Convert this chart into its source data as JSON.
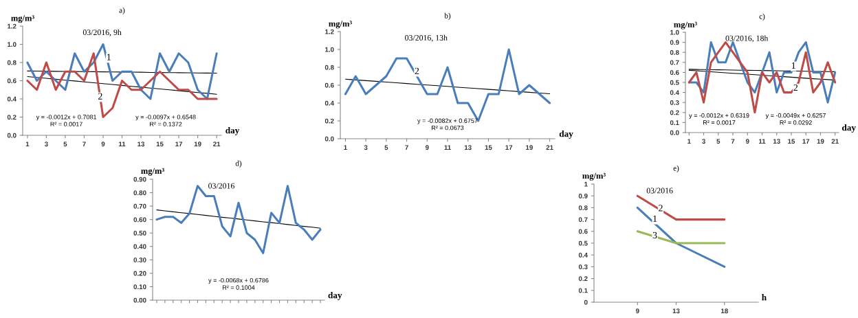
{
  "chart_data": [
    {
      "type": "line",
      "title": "a)",
      "subtitle": "03/2016, 9h",
      "ylabel": "mg/m³",
      "xlabel": "day",
      "x": [
        1,
        2,
        3,
        4,
        5,
        6,
        7,
        8,
        9,
        10,
        11,
        12,
        13,
        14,
        15,
        16,
        17,
        18,
        19,
        20,
        21
      ],
      "xlim": [
        0.5,
        21.5
      ],
      "xticks": [
        1,
        3,
        5,
        7,
        9,
        11,
        13,
        15,
        17,
        19,
        21
      ],
      "ylim": [
        0,
        1.2
      ],
      "yticks": [
        {
          "value": 0,
          "label": "0.0"
        },
        0.2,
        0.4,
        0.6,
        0.8,
        {
          "value": 1,
          "label": "1.0"
        },
        1.2
      ],
      "series": [
        {
          "color": "#4a7ebb",
          "values": [
            0.8,
            0.6,
            0.7,
            0.6,
            0.5,
            0.9,
            0.7,
            0.8,
            1.0,
            0.6,
            0.7,
            0.7,
            0.5,
            0.4,
            0.9,
            0.7,
            0.9,
            0.8,
            0.5,
            0.4,
            0.9
          ]
        },
        {
          "color": "#be4b48",
          "values": [
            0.6,
            0.5,
            0.8,
            0.5,
            0.7,
            0.7,
            0.6,
            0.9,
            0.2,
            0.3,
            0.6,
            0.5,
            0.5,
            0.6,
            0.7,
            0.6,
            0.5,
            0.5,
            0.4,
            0.4,
            0.4
          ]
        },
        {
          "type": "line",
          "color": "#000000",
          "values": [
            0.707,
            0.706,
            0.705,
            0.703,
            0.702,
            0.701,
            0.7,
            0.699,
            0.697,
            0.696,
            0.695,
            0.694,
            0.693,
            0.691,
            0.69,
            0.689,
            0.688,
            0.687,
            0.685,
            0.684,
            0.683
          ]
        },
        {
          "type": "line",
          "color": "#000000",
          "values": [
            0.645,
            0.636,
            0.626,
            0.616,
            0.606,
            0.597,
            0.587,
            0.577,
            0.568,
            0.558,
            0.548,
            0.538,
            0.529,
            0.519,
            0.509,
            0.5,
            0.49,
            0.48,
            0.47,
            0.461,
            0.451
          ]
        }
      ],
      "annotations": [
        {
          "text": "1",
          "x": 9.6,
          "y": 0.85
        },
        {
          "text": "2",
          "x": 8.7,
          "y": 0.42
        },
        "y = -0.0012x + 0.7081\nR² = 0.0017",
        "y = -0.0097x + 0.6548\nR² = 0.1372"
      ]
    },
    {
      "type": "line",
      "title": "b)",
      "subtitle": "03/2016, 13h",
      "ylabel": "mg/m³",
      "xlabel": "day",
      "x": [
        1,
        2,
        3,
        4,
        5,
        6,
        7,
        8,
        9,
        10,
        11,
        12,
        13,
        14,
        15,
        16,
        17,
        18,
        19,
        20,
        21
      ],
      "xlim": [
        0.5,
        21.5
      ],
      "xticks": [
        1,
        3,
        5,
        7,
        9,
        11,
        13,
        15,
        17,
        19,
        21
      ],
      "ylim": [
        0,
        1.2
      ],
      "yticks": [
        {
          "value": 0,
          "label": "0.0"
        },
        0.2,
        0.4,
        0.6,
        0.8,
        {
          "value": 1,
          "label": "1.0"
        },
        1.2
      ],
      "series": [
        {
          "color": "#4a7ebb",
          "values": [
            0.5,
            0.7,
            0.5,
            0.6,
            0.7,
            0.9,
            0.9,
            0.7,
            0.5,
            0.5,
            0.8,
            0.4,
            0.4,
            0.2,
            0.5,
            0.5,
            1.0,
            0.5,
            0.6,
            0.5,
            0.4
          ]
        },
        {
          "type": "line",
          "color": "#000000",
          "values": [
            0.667,
            0.659,
            0.651,
            0.643,
            0.635,
            0.627,
            0.618,
            0.61,
            0.602,
            0.594,
            0.586,
            0.577,
            0.569,
            0.561,
            0.553,
            0.545,
            0.536,
            0.528,
            0.52,
            0.512,
            0.504
          ]
        }
      ],
      "annotations": [
        {
          "text": "2",
          "x": 8.0,
          "y": 0.75
        },
        "y = -0.0082x + 0.6757\nR² = 0.0673"
      ]
    },
    {
      "type": "line",
      "title": "c)",
      "subtitle": "03/2016, 18h",
      "ylabel": "mg/m³",
      "xlabel": "day",
      "x": [
        1,
        2,
        3,
        4,
        5,
        6,
        7,
        8,
        9,
        10,
        11,
        12,
        13,
        14,
        15,
        16,
        17,
        18,
        19,
        20,
        21
      ],
      "xlim": [
        0.5,
        21.5
      ],
      "xticks": [
        1,
        3,
        5,
        7,
        9,
        11,
        13,
        15,
        17,
        19,
        21
      ],
      "ylim": [
        0,
        1.0
      ],
      "yticks": [
        {
          "value": 0,
          "label": "0.0"
        },
        0.1,
        0.2,
        0.3,
        0.4,
        0.5,
        0.6,
        0.7,
        0.8,
        0.9,
        {
          "value": 1,
          "label": "1.0"
        }
      ],
      "series": [
        {
          "color": "#4a7ebb",
          "values": [
            0.5,
            0.5,
            0.4,
            0.9,
            0.7,
            0.7,
            0.9,
            0.7,
            0.5,
            0.4,
            0.6,
            0.8,
            0.4,
            0.6,
            0.6,
            0.8,
            0.9,
            0.6,
            0.6,
            0.3,
            0.6
          ]
        },
        {
          "color": "#be4b48",
          "values": [
            0.5,
            0.6,
            0.3,
            0.7,
            0.8,
            0.9,
            0.8,
            0.7,
            0.6,
            0.2,
            0.6,
            0.5,
            0.6,
            0.4,
            0.4,
            0.5,
            0.8,
            0.4,
            0.5,
            0.7,
            0.5
          ]
        },
        {
          "type": "line",
          "color": "#000000",
          "values": [
            0.631,
            0.629,
            0.628,
            0.627,
            0.626,
            0.625,
            0.623,
            0.622,
            0.621,
            0.62,
            0.619,
            0.617,
            0.616,
            0.615,
            0.614,
            0.613,
            0.611,
            0.61,
            0.609,
            0.608,
            0.607
          ]
        },
        {
          "type": "line",
          "color": "#000000",
          "values": [
            0.621,
            0.616,
            0.611,
            0.606,
            0.601,
            0.596,
            0.591,
            0.587,
            0.582,
            0.577,
            0.572,
            0.567,
            0.562,
            0.557,
            0.552,
            0.547,
            0.542,
            0.537,
            0.533,
            0.528,
            0.523
          ]
        }
      ],
      "annotations": [
        {
          "text": "1",
          "x": 15.3,
          "y": 0.66
        },
        {
          "text": "2",
          "x": 15.6,
          "y": 0.44
        },
        "y = -0.0012x + 0.6319\nR² = 0.0017",
        "y = -0.0049x + 0.6257\nR² = 0.0292"
      ]
    },
    {
      "type": "line",
      "title": "d)",
      "subtitle": "03/2016",
      "ylabel": "mg/m³",
      "xlabel": "day",
      "categories": [
        null,
        null,
        null,
        null,
        null,
        null,
        null,
        null,
        null,
        null,
        null,
        null,
        null,
        null,
        null,
        null,
        null,
        null,
        null,
        null,
        null
      ],
      "ylim": [
        0,
        0.9
      ],
      "yticks": [
        {
          "value": 0,
          "label": "0.00"
        },
        {
          "value": 0.1,
          "label": "0.10"
        },
        {
          "value": 0.2,
          "label": "0.20"
        },
        {
          "value": 0.3,
          "label": "0.30"
        },
        {
          "value": 0.4,
          "label": "0.40"
        },
        {
          "value": 0.5,
          "label": "0.50"
        },
        {
          "value": 0.6,
          "label": "0.60"
        },
        {
          "value": 0.7,
          "label": "0.70"
        },
        {
          "value": 0.8,
          "label": "0.80"
        },
        {
          "value": 0.9,
          "label": "0.90"
        }
      ],
      "series": [
        {
          "color": "#4a7ebb",
          "values": [
            0.6,
            0.62,
            0.62,
            0.575,
            0.645,
            0.85,
            0.775,
            0.775,
            0.55,
            0.475,
            0.725,
            0.5,
            0.45,
            0.35,
            0.65,
            0.575,
            0.85,
            0.575,
            0.525,
            0.45,
            0.525
          ]
        },
        {
          "type": "line",
          "color": "#000000",
          "values": [
            0.672,
            0.665,
            0.658,
            0.651,
            0.645,
            0.638,
            0.631,
            0.624,
            0.617,
            0.611,
            0.604,
            0.597,
            0.59,
            0.583,
            0.577,
            0.57,
            0.563,
            0.556,
            0.549,
            0.543,
            0.536
          ]
        }
      ],
      "annotations": [
        "y = -0.0068x + 0.6786\nR² = 0.1004"
      ]
    },
    {
      "type": "line",
      "title": "e)",
      "subtitle": "03/2016",
      "ylabel": "mg/m³",
      "xlabel": "h",
      "x": [
        9,
        13,
        18
      ],
      "xlim": [
        4.5,
        21.5
      ],
      "xticks": [
        9,
        13,
        18
      ],
      "ylim": [
        0,
        1
      ],
      "yticks": [
        0,
        0.1,
        0.2,
        0.3,
        0.4,
        0.5,
        0.6,
        0.7,
        0.8,
        0.9,
        1
      ],
      "series": [
        {
          "color": "#4a7ebb",
          "values": [
            0.8,
            0.5,
            0.3
          ]
        },
        {
          "color": "#be4b48",
          "values": [
            0.9,
            0.7,
            0.7
          ]
        },
        {
          "color": "#98b954",
          "values": [
            0.6,
            0.5,
            0.5
          ]
        }
      ],
      "annotations": [
        {
          "text": "1",
          "x": 10.8,
          "y": 0.7
        },
        {
          "text": "2",
          "x": 11.4,
          "y": 0.79
        },
        {
          "text": "3",
          "x": 10.8,
          "y": 0.56
        }
      ]
    }
  ]
}
